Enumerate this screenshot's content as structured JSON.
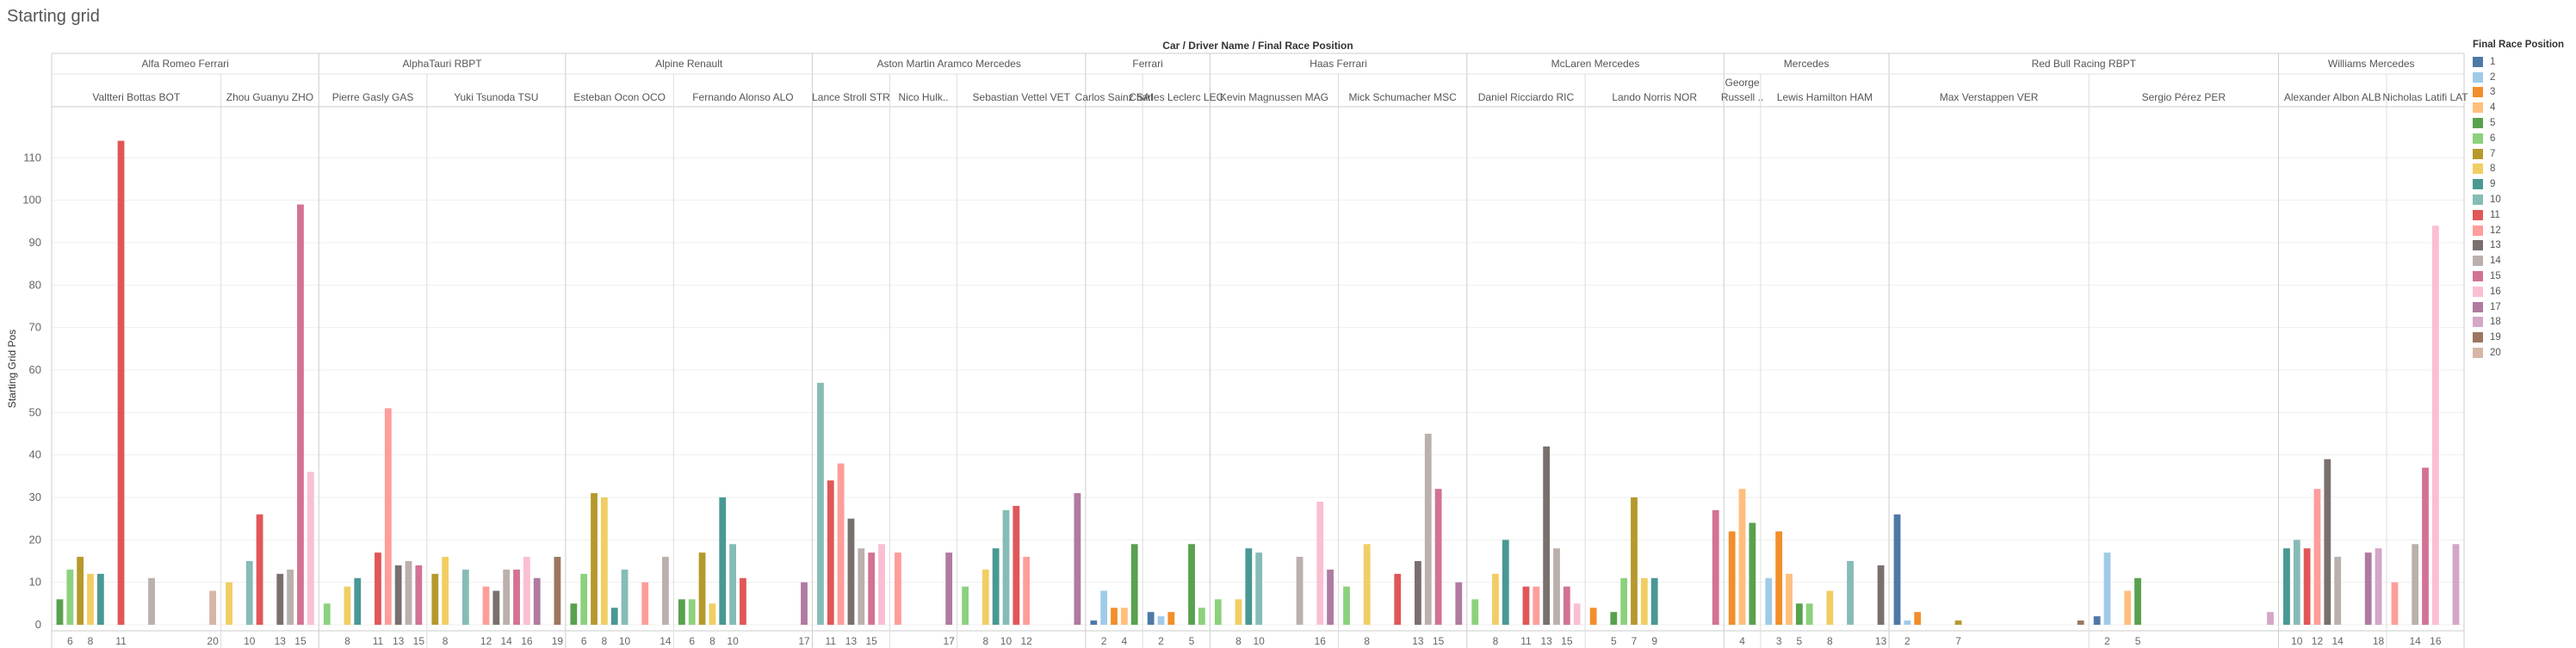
{
  "title": "Starting grid",
  "chart_data": {
    "type": "bar",
    "header_title": "Car / Driver Name / Final Race Position",
    "ylabel": "Starting Grid Pos",
    "ylim": [
      0,
      120
    ],
    "yticks": [
      0,
      10,
      20,
      30,
      40,
      50,
      60,
      70,
      80,
      90,
      100,
      110
    ],
    "legend": {
      "title": "Final Race Position",
      "placement": "right",
      "entries": [
        {
          "label": "1",
          "color": "#4e79a7"
        },
        {
          "label": "2",
          "color": "#a0cbe8"
        },
        {
          "label": "3",
          "color": "#f28e2b"
        },
        {
          "label": "4",
          "color": "#ffbe7d"
        },
        {
          "label": "5",
          "color": "#59a14f"
        },
        {
          "label": "6",
          "color": "#8cd17d"
        },
        {
          "label": "7",
          "color": "#b6992d"
        },
        {
          "label": "8",
          "color": "#f1ce63"
        },
        {
          "label": "9",
          "color": "#499894"
        },
        {
          "label": "10",
          "color": "#86bcb6"
        },
        {
          "label": "11",
          "color": "#e15759"
        },
        {
          "label": "12",
          "color": "#ff9d9a"
        },
        {
          "label": "13",
          "color": "#79706e"
        },
        {
          "label": "14",
          "color": "#bab0ac"
        },
        {
          "label": "15",
          "color": "#d37295"
        },
        {
          "label": "16",
          "color": "#fabfd2"
        },
        {
          "label": "17",
          "color": "#b07aa1"
        },
        {
          "label": "18",
          "color": "#d4a6c8"
        },
        {
          "label": "19",
          "color": "#9d7660"
        },
        {
          "label": "20",
          "color": "#d7b5a6"
        }
      ]
    },
    "cars": [
      {
        "name": "Alfa Romeo Ferrari",
        "drivers": [
          {
            "name": "Valtteri Bottas BOT",
            "bars": [
              [
                5,
                6
              ],
              [
                6,
                13
              ],
              [
                7,
                16
              ],
              [
                8,
                12
              ],
              [
                9,
                12
              ],
              [
                11,
                114
              ],
              [
                14,
                11
              ],
              [
                20,
                8
              ]
            ],
            "ticks": [
              "6",
              "8",
              "11",
              "20"
            ]
          },
          {
            "name": "Zhou Guanyu ZHO",
            "bars": [
              [
                8,
                10
              ],
              [
                10,
                15
              ],
              [
                11,
                26
              ],
              [
                13,
                12
              ],
              [
                14,
                13
              ],
              [
                15,
                99
              ],
              [
                16,
                36
              ]
            ],
            "ticks": [
              "10",
              "13",
              "15"
            ]
          }
        ]
      },
      {
        "name": "AlphaTauri RBPT",
        "drivers": [
          {
            "name": "Pierre Gasly GAS",
            "bars": [
              [
                6,
                5
              ],
              [
                8,
                9
              ],
              [
                9,
                11
              ],
              [
                11,
                17
              ],
              [
                12,
                51
              ],
              [
                13,
                14
              ],
              [
                14,
                15
              ],
              [
                15,
                14
              ]
            ],
            "ticks": [
              "8",
              "11",
              "13",
              "15"
            ]
          },
          {
            "name": "Yuki Tsunoda TSU",
            "bars": [
              [
                7,
                12
              ],
              [
                8,
                16
              ],
              [
                10,
                13
              ],
              [
                12,
                9
              ],
              [
                13,
                8
              ],
              [
                14,
                13
              ],
              [
                15,
                13
              ],
              [
                16,
                16
              ],
              [
                17,
                11
              ],
              [
                19,
                16
              ]
            ],
            "ticks": [
              "8",
              "12",
              "14",
              "16",
              "19"
            ]
          }
        ]
      },
      {
        "name": "Alpine Renault",
        "drivers": [
          {
            "name": "Esteban Ocon OCO",
            "bars": [
              [
                5,
                5
              ],
              [
                6,
                12
              ],
              [
                7,
                31
              ],
              [
                8,
                30
              ],
              [
                9,
                4
              ],
              [
                10,
                13
              ],
              [
                12,
                10
              ],
              [
                14,
                16
              ]
            ],
            "ticks": [
              "6",
              "8",
              "10",
              "14"
            ]
          },
          {
            "name": "Fernando Alonso ALO",
            "bars": [
              [
                5,
                6
              ],
              [
                6,
                6
              ],
              [
                7,
                17
              ],
              [
                8,
                5
              ],
              [
                9,
                30
              ],
              [
                10,
                19
              ],
              [
                11,
                11
              ],
              [
                17,
                10
              ]
            ],
            "ticks": [
              "6",
              "8",
              "10",
              "17"
            ]
          }
        ]
      },
      {
        "name": "Aston Martin Aramco Mercedes",
        "drivers": [
          {
            "name": "Lance Stroll STR",
            "bars": [
              [
                10,
                57
              ],
              [
                11,
                34
              ],
              [
                12,
                38
              ],
              [
                13,
                25
              ],
              [
                14,
                18
              ],
              [
                15,
                17
              ],
              [
                16,
                19
              ]
            ],
            "ticks": [
              "11",
              "13",
              "15"
            ]
          },
          {
            "name": "Nico Hulk..",
            "bars": [
              [
                12,
                17
              ],
              [
                17,
                17
              ]
            ],
            "ticks": [
              "17"
            ]
          },
          {
            "name": "Sebastian Vettel VET",
            "bars": [
              [
                6,
                9
              ],
              [
                8,
                13
              ],
              [
                9,
                18
              ],
              [
                10,
                27
              ],
              [
                11,
                28
              ],
              [
                12,
                16
              ],
              [
                17,
                31
              ]
            ],
            "ticks": [
              "8",
              "10",
              "12"
            ]
          }
        ]
      },
      {
        "name": "Ferrari",
        "drivers": [
          {
            "name": "Carlos Sainz SAI",
            "bars": [
              [
                1,
                1
              ],
              [
                2,
                8
              ],
              [
                3,
                4
              ],
              [
                4,
                4
              ],
              [
                5,
                19
              ]
            ],
            "ticks": [
              "2",
              "4"
            ]
          },
          {
            "name": "Charles Leclerc LEC",
            "bars": [
              [
                1,
                3
              ],
              [
                2,
                2
              ],
              [
                3,
                3
              ],
              [
                5,
                19
              ],
              [
                6,
                4
              ]
            ],
            "ticks": [
              "2",
              "5"
            ]
          }
        ]
      },
      {
        "name": "Haas Ferrari",
        "drivers": [
          {
            "name": "Kevin Magnussen MAG",
            "bars": [
              [
                6,
                6
              ],
              [
                8,
                6
              ],
              [
                9,
                18
              ],
              [
                10,
                17
              ],
              [
                14,
                16
              ],
              [
                16,
                29
              ],
              [
                17,
                13
              ]
            ],
            "ticks": [
              "8",
              "10",
              "16"
            ]
          },
          {
            "name": "Mick Schumacher MSC",
            "bars": [
              [
                6,
                9
              ],
              [
                8,
                19
              ],
              [
                11,
                12
              ],
              [
                13,
                15
              ],
              [
                14,
                45
              ],
              [
                15,
                32
              ],
              [
                17,
                10
              ]
            ],
            "ticks": [
              "8",
              "13",
              "15"
            ]
          }
        ]
      },
      {
        "name": "McLaren Mercedes",
        "drivers": [
          {
            "name": "Daniel Ricciardo RIC",
            "bars": [
              [
                6,
                6
              ],
              [
                8,
                12
              ],
              [
                9,
                20
              ],
              [
                11,
                9
              ],
              [
                12,
                9
              ],
              [
                13,
                42
              ],
              [
                14,
                18
              ],
              [
                15,
                9
              ],
              [
                16,
                5
              ]
            ],
            "ticks": [
              "8",
              "11",
              "13",
              "15"
            ]
          },
          {
            "name": "Lando Norris NOR",
            "bars": [
              [
                3,
                4
              ],
              [
                5,
                3
              ],
              [
                6,
                11
              ],
              [
                7,
                30
              ],
              [
                8,
                11
              ],
              [
                9,
                11
              ],
              [
                15,
                27
              ]
            ],
            "ticks": [
              "5",
              "7",
              "9"
            ]
          }
        ]
      },
      {
        "name": "Mercedes",
        "drivers": [
          {
            "name": "George Russell ..",
            "bars": [
              [
                3,
                22
              ],
              [
                4,
                32
              ],
              [
                5,
                24
              ]
            ],
            "ticks": [
              "4"
            ]
          },
          {
            "name": "Lewis Hamilton HAM",
            "bars": [
              [
                2,
                11
              ],
              [
                3,
                22
              ],
              [
                4,
                12
              ],
              [
                5,
                5
              ],
              [
                6,
                5
              ],
              [
                8,
                8
              ],
              [
                10,
                15
              ],
              [
                13,
                14
              ]
            ],
            "ticks": [
              "3",
              "5",
              "8",
              "13"
            ]
          }
        ]
      },
      {
        "name": "Red Bull Racing RBPT",
        "drivers": [
          {
            "name": "Max Verstappen VER",
            "bars": [
              [
                1,
                26
              ],
              [
                2,
                1
              ],
              [
                3,
                3
              ],
              [
                7,
                1
              ],
              [
                19,
                1
              ]
            ],
            "ticks": [
              "2",
              "7"
            ]
          },
          {
            "name": "Sergio Pérez PER",
            "bars": [
              [
                1,
                2
              ],
              [
                2,
                17
              ],
              [
                4,
                8
              ],
              [
                5,
                11
              ],
              [
                18,
                3
              ]
            ],
            "ticks": [
              "2",
              "5"
            ]
          }
        ]
      },
      {
        "name": "Williams Mercedes",
        "drivers": [
          {
            "name": "Alexander Albon ALB",
            "bars": [
              [
                9,
                18
              ],
              [
                10,
                20
              ],
              [
                11,
                18
              ],
              [
                12,
                32
              ],
              [
                13,
                39
              ],
              [
                14,
                16
              ],
              [
                17,
                17
              ],
              [
                18,
                18
              ]
            ],
            "ticks": [
              "10",
              "12",
              "14",
              "18"
            ]
          },
          {
            "name": "Nicholas Latifi LAT",
            "bars": [
              [
                12,
                10
              ],
              [
                14,
                19
              ],
              [
                15,
                37
              ],
              [
                16,
                94
              ],
              [
                18,
                19
              ]
            ],
            "ticks": [
              "14",
              "16"
            ]
          }
        ]
      }
    ]
  }
}
